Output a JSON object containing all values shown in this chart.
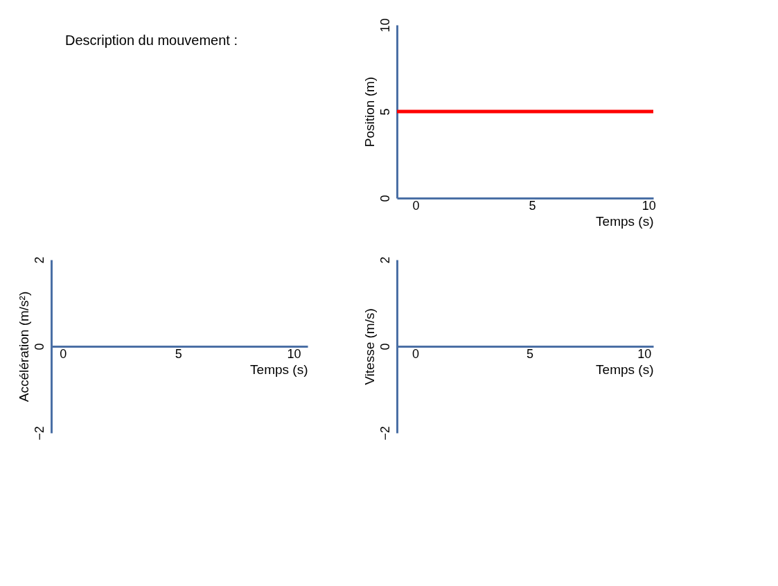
{
  "chart_data": [
    {
      "type": "other",
      "annotations": [
        "Description du mouvement :"
      ]
    },
    {
      "type": "line",
      "xlabel": "Temps (s)",
      "ylabel": "Position (m)",
      "xlim": [
        -0.8,
        10.2
      ],
      "ylim": [
        0,
        10
      ],
      "xticks": [
        0,
        5,
        10
      ],
      "yticks": [
        0,
        5,
        10
      ],
      "grid": false,
      "series": [
        {
          "color": "#ff0000",
          "x": [
            -0.8,
            10.2
          ],
          "values": [
            5,
            5
          ]
        }
      ]
    },
    {
      "type": "line",
      "xlabel": "Temps (s)",
      "ylabel": "Accélération (m/s²)",
      "xlim": [
        -0.5,
        10.6
      ],
      "ylim": [
        -2,
        2
      ],
      "xticks": [
        0,
        5,
        10
      ],
      "yticks": [
        -2,
        0,
        2
      ],
      "grid": false
    },
    {
      "type": "line",
      "xlabel": "Temps (s)",
      "ylabel": "Vitesse (m/s)",
      "xlim": [
        -0.8,
        10.4
      ],
      "ylim": [
        -2,
        2
      ],
      "xticks": [
        0,
        5,
        10
      ],
      "yticks": [
        -2,
        0,
        2
      ],
      "grid": false
    }
  ]
}
